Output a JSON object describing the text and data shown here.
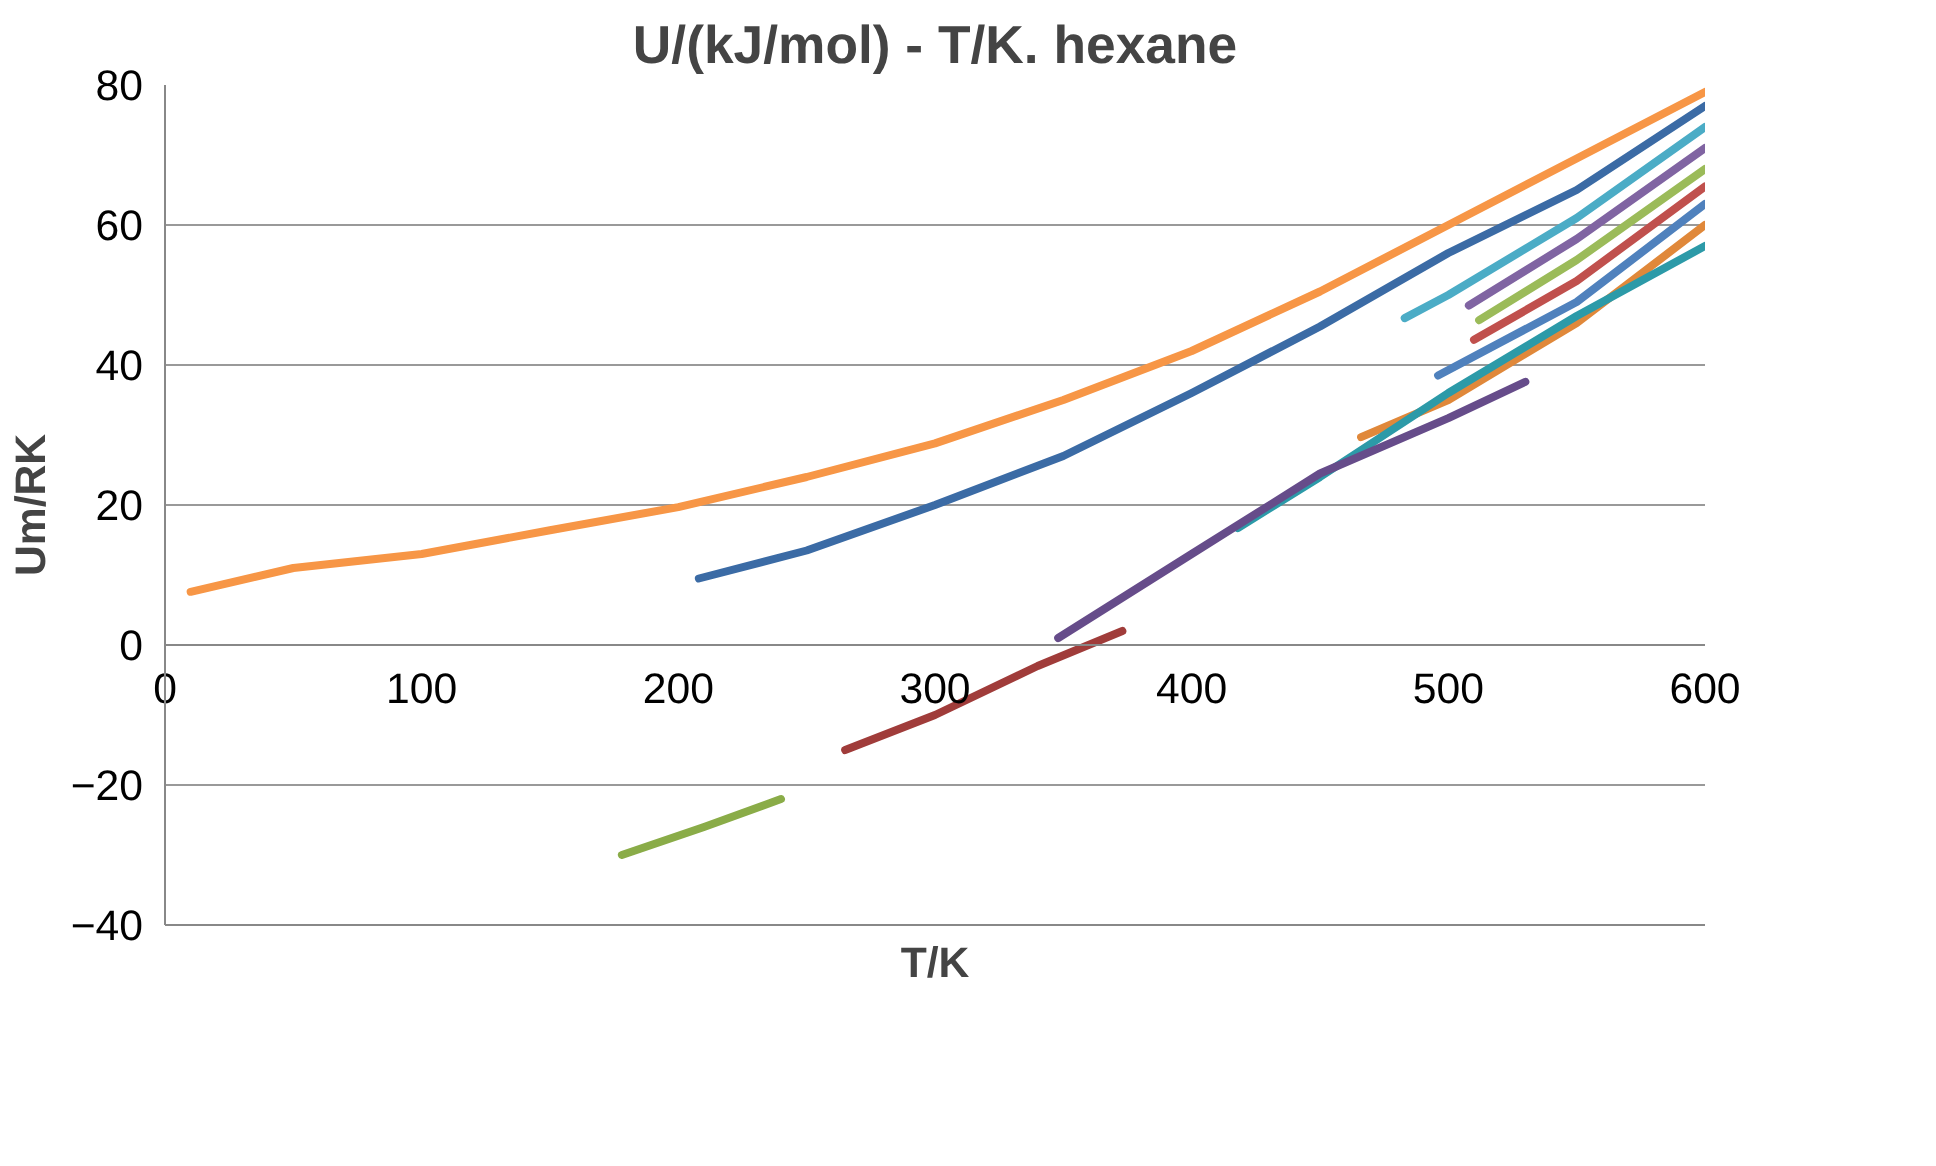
{
  "chart_data": {
    "type": "line",
    "title": "U/(kJ/mol) - T/K. hexane",
    "xlabel": "T/K",
    "ylabel": "Um/RK",
    "xlim": [
      0,
      600
    ],
    "ylim": [
      -40,
      80
    ],
    "xticks": [
      0,
      100,
      200,
      300,
      400,
      500,
      600
    ],
    "yticks": [
      -40,
      -20,
      0,
      20,
      40,
      60,
      80
    ],
    "grid": "y",
    "line_style": "solid",
    "marker": "none",
    "series": [
      {
        "color": "#f79646",
        "x": [
          10,
          50,
          100,
          150,
          200,
          250,
          300,
          350,
          400,
          450,
          500,
          550,
          600
        ],
        "values": [
          7.6,
          11,
          13,
          16.4,
          19.7,
          24,
          28.8,
          35,
          42,
          50.5,
          60,
          69.5,
          79
        ]
      },
      {
        "color": "#3b6ba5",
        "x": [
          208,
          250,
          300,
          350,
          400,
          450,
          500,
          550,
          600
        ],
        "values": [
          9.5,
          13.5,
          20,
          27,
          36,
          45.5,
          56,
          65,
          77
        ]
      },
      {
        "color": "#4bacc6",
        "x": [
          483,
          500,
          550,
          600
        ],
        "values": [
          46.7,
          50,
          61,
          74
        ]
      },
      {
        "color": "#8064a2",
        "x": [
          508,
          550,
          600
        ],
        "values": [
          48.5,
          58,
          71
        ]
      },
      {
        "color": "#9bbb59",
        "x": [
          512,
          550,
          600
        ],
        "values": [
          46.4,
          55,
          68
        ]
      },
      {
        "color": "#c0504d",
        "x": [
          510,
          550,
          600
        ],
        "values": [
          43.6,
          52,
          65.5
        ]
      },
      {
        "color": "#4f81bd",
        "x": [
          496,
          550,
          600
        ],
        "values": [
          38.5,
          49,
          63
        ]
      },
      {
        "color": "#e0883a",
        "x": [
          466,
          500,
          550,
          600
        ],
        "values": [
          29.7,
          35,
          46,
          60
        ]
      },
      {
        "color": "#2c9aa8",
        "x": [
          418,
          450,
          500,
          550,
          600
        ],
        "values": [
          16.7,
          24,
          36,
          47,
          57
        ]
      },
      {
        "color": "#664c8a",
        "x": [
          348,
          400,
          450,
          500,
          530
        ],
        "values": [
          1,
          13,
          24.5,
          32.4,
          37.6
        ]
      },
      {
        "color": "#a03c3a",
        "x": [
          265,
          300,
          340,
          373
        ],
        "values": [
          -15,
          -10,
          -3,
          2
        ]
      },
      {
        "color": "#8aac48",
        "x": [
          178,
          210,
          240
        ],
        "values": [
          -30,
          -26,
          -22
        ]
      }
    ]
  }
}
